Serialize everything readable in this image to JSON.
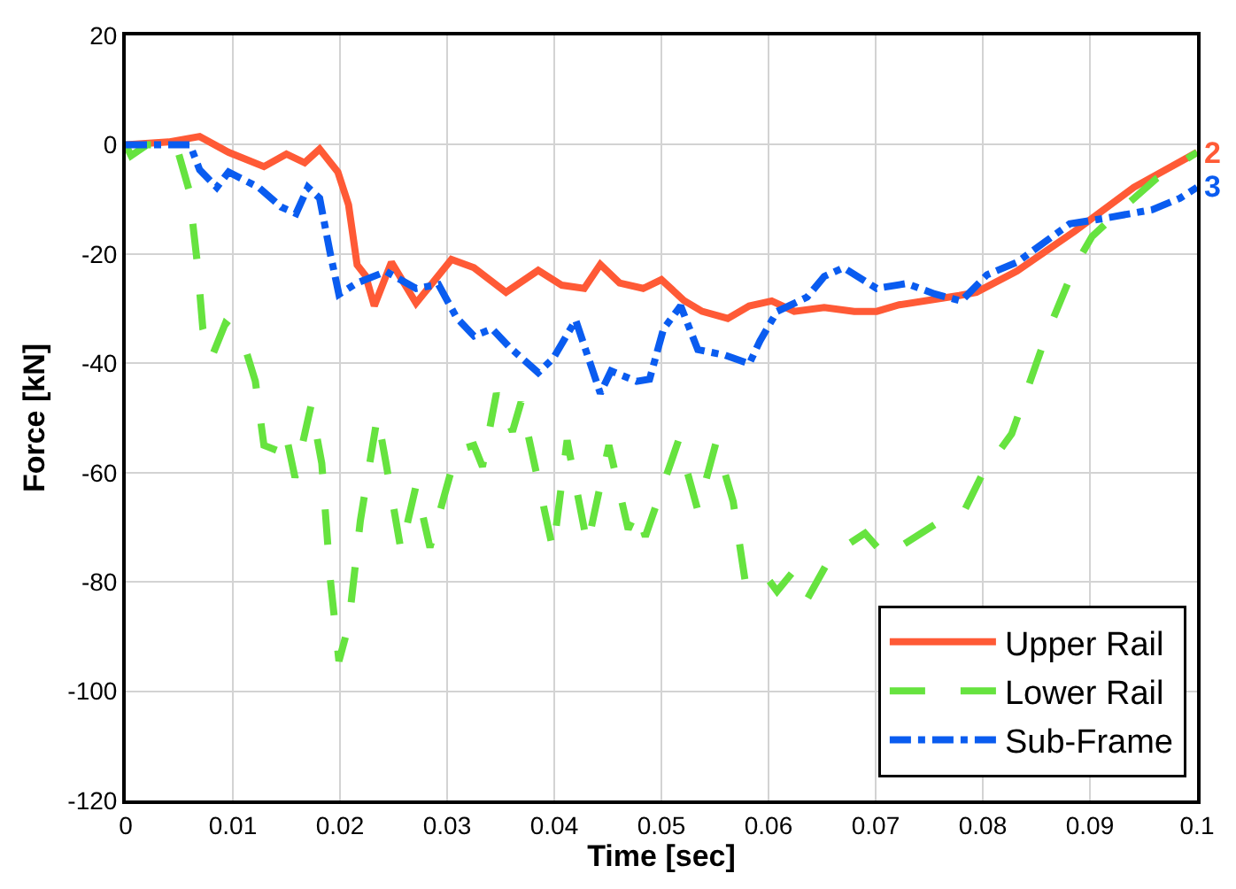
{
  "chart_data": {
    "type": "line",
    "xlabel": "Time [sec]",
    "ylabel": "Force [kN]",
    "xlim": [
      0,
      0.1
    ],
    "xticks": [
      0,
      0.01,
      0.02,
      0.03,
      0.04,
      0.05,
      0.06,
      0.07,
      0.08,
      0.09,
      0.1
    ],
    "ylim": [
      -120,
      20
    ],
    "yticks": [
      -120,
      -100,
      -80,
      -60,
      -40,
      -20,
      0,
      20
    ],
    "grid": true,
    "legend": "bottom right",
    "marker": "none",
    "annotations": [
      {
        "text": "2",
        "x": 0.1,
        "y": -1.4
      },
      {
        "text": "3",
        "x": 0.1,
        "y": -7.8
      }
    ],
    "series": [
      {
        "name": "Upper Rail",
        "color": "#ff5a36",
        "line_style": "solid",
        "x": [
          0,
          0.004,
          0.0069,
          0.0096,
          0.0129,
          0.015,
          0.0167,
          0.0181,
          0.0198,
          0.0208,
          0.0216,
          0.0224,
          0.0232,
          0.0248,
          0.0271,
          0.0304,
          0.0325,
          0.0355,
          0.0385,
          0.0407,
          0.0428,
          0.0443,
          0.0461,
          0.0483,
          0.05,
          0.0521,
          0.0538,
          0.0562,
          0.0582,
          0.0603,
          0.0624,
          0.0652,
          0.068,
          0.0701,
          0.0722,
          0.0778,
          0.0794,
          0.0832,
          0.0886,
          0.0941,
          0.1
        ],
        "values": [
          0,
          0.5,
          1.5,
          -1.4,
          -4,
          -1.7,
          -3.3,
          -0.8,
          -5,
          -11,
          -22,
          -24,
          -29.5,
          -21.5,
          -29,
          -21,
          -22.5,
          -27,
          -23,
          -25.7,
          -26.3,
          -21.9,
          -25.3,
          -26.3,
          -24.7,
          -28.5,
          -30.5,
          -31.8,
          -29.5,
          -28.6,
          -30.5,
          -29.8,
          -30.5,
          -30.5,
          -29.3,
          -27.6,
          -27,
          -23.1,
          -15.8,
          -7.8,
          -1.4
        ]
      },
      {
        "name": "Lower Rail",
        "color": "#66e33f",
        "line_style": "dashed",
        "x": [
          0,
          0.0005,
          0.002,
          0.0047,
          0.0059,
          0.0067,
          0.0072,
          0.008,
          0.0093,
          0.0108,
          0.0121,
          0.0129,
          0.0142,
          0.0149,
          0.0158,
          0.0173,
          0.0183,
          0.0191,
          0.0199,
          0.0208,
          0.0219,
          0.0235,
          0.0243,
          0.0257,
          0.0271,
          0.0284,
          0.0309,
          0.0325,
          0.0333,
          0.0346,
          0.0361,
          0.0369,
          0.0399,
          0.0412,
          0.0431,
          0.0451,
          0.0469,
          0.0477,
          0.0485,
          0.0516,
          0.0534,
          0.0551,
          0.0567,
          0.0578,
          0.0592,
          0.0608,
          0.0623,
          0.0636,
          0.0655,
          0.0673,
          0.069,
          0.0709,
          0.0761,
          0.0783,
          0.0799,
          0.0827,
          0.0859,
          0.0886,
          0.0902,
          0.0925,
          0.0962,
          0.1
        ],
        "values": [
          0,
          -2,
          0,
          0,
          -8.2,
          -22,
          -33.7,
          -39,
          -32.7,
          -35,
          -43.3,
          -55,
          -56,
          -52.5,
          -60.9,
          -47.7,
          -58.3,
          -79.6,
          -94.5,
          -88,
          -68.8,
          -49.6,
          -58.3,
          -74.3,
          -62.4,
          -73.7,
          -56,
          -55,
          -58.9,
          -45.5,
          -52.5,
          -47.1,
          -74.3,
          -54.1,
          -73.3,
          -55,
          -70.4,
          -66.9,
          -71.7,
          -54.1,
          -66.9,
          -54.5,
          -65.3,
          -79.6,
          -77.5,
          -81.7,
          -78.1,
          -83.2,
          -76.5,
          -73.3,
          -71.1,
          -75.3,
          -68.8,
          -66.9,
          -60.5,
          -52.9,
          -35,
          -22.2,
          -16.8,
          -12.6,
          -6.2,
          -1.4
        ]
      },
      {
        "name": "Sub-Frame",
        "color": "#0a5cf0",
        "line_style": "dashdot",
        "x": [
          0,
          0.006,
          0.0069,
          0.0085,
          0.0096,
          0.0124,
          0.0145,
          0.0159,
          0.017,
          0.0181,
          0.0191,
          0.0199,
          0.0216,
          0.0243,
          0.0271,
          0.0292,
          0.0309,
          0.0325,
          0.0342,
          0.0358,
          0.0385,
          0.0399,
          0.042,
          0.0443,
          0.0453,
          0.0477,
          0.0489,
          0.0502,
          0.0518,
          0.0534,
          0.0559,
          0.0582,
          0.0592,
          0.0608,
          0.0636,
          0.0652,
          0.067,
          0.0701,
          0.0729,
          0.0755,
          0.078,
          0.0804,
          0.0832,
          0.0881,
          0.0913,
          0.0958,
          0.0984,
          0.1
        ],
        "values": [
          0,
          0,
          -4.6,
          -7.8,
          -5,
          -7.8,
          -11.4,
          -12.6,
          -7.8,
          -9.8,
          -20,
          -27.4,
          -25.3,
          -23.2,
          -26.3,
          -25.6,
          -31.7,
          -35,
          -33.7,
          -37,
          -41.7,
          -39.1,
          -32.1,
          -45.5,
          -41.4,
          -43.3,
          -42.9,
          -33.7,
          -29.5,
          -37.5,
          -38.5,
          -40.1,
          -35.9,
          -30.5,
          -27.9,
          -24.1,
          -22.5,
          -26.3,
          -25.4,
          -27.3,
          -28.6,
          -23.8,
          -21.5,
          -14.5,
          -13.5,
          -11.9,
          -9.8,
          -7.8
        ]
      }
    ]
  }
}
